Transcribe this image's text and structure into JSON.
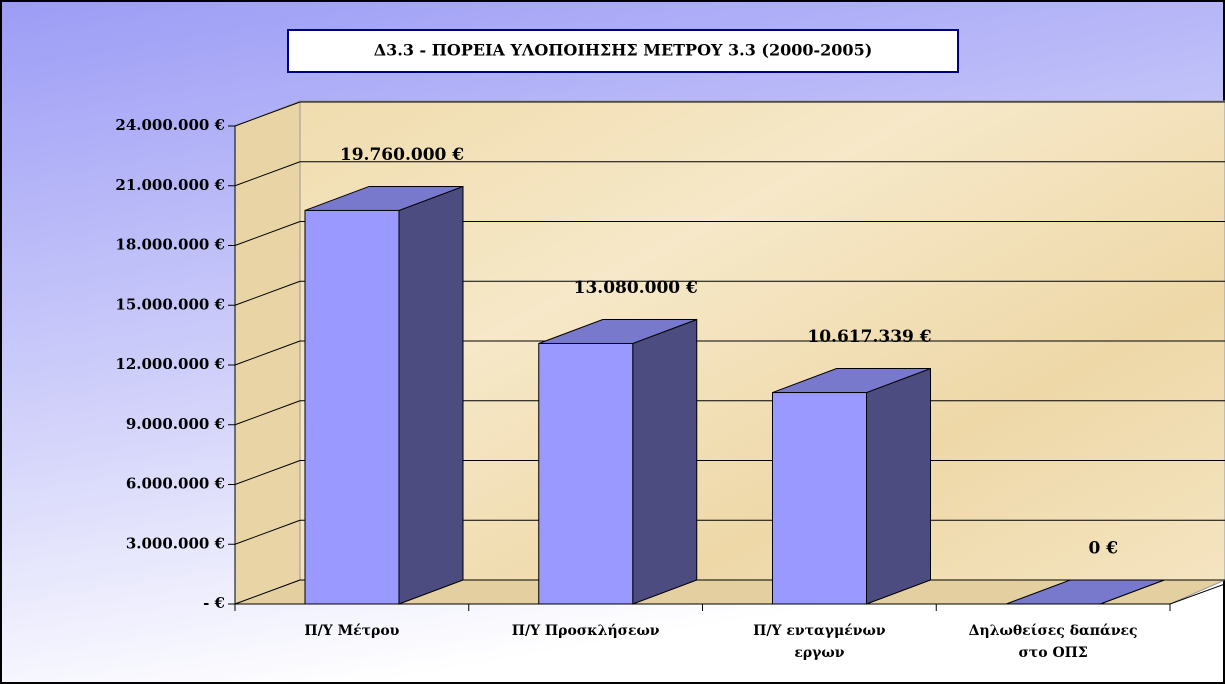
{
  "chart_data": {
    "type": "bar3d",
    "title": "Δ3.3 - ΠΟΡΕΙΑ ΥΛΟΠΟΙΗΣΗΣ ΜΕΤΡΟΥ 3.3  (2000-2005)",
    "categories": [
      "Π/Υ Μέτρου",
      "Π/Υ  Προσκλήσεων",
      "Π/Υ ενταγμένων εργων",
      "Δηλωθείσες δαπάνες στο ΟΠΣ"
    ],
    "values": [
      19760000,
      13080000,
      10617339,
      0
    ],
    "value_labels": [
      "19.760.000 €",
      "13.080.000 €",
      "10.617.339 €",
      "0 €"
    ],
    "color": "#9999ff",
    "ylim": [
      0,
      24000000
    ],
    "yticks": [
      {
        "value": 0,
        "label": "- €"
      },
      {
        "value": 3000000,
        "label": "3.000.000 €"
      },
      {
        "value": 6000000,
        "label": "6.000.000 €"
      },
      {
        "value": 9000000,
        "label": "9.000.000 €"
      },
      {
        "value": 12000000,
        "label": "12.000.000 €"
      },
      {
        "value": 15000000,
        "label": "15.000.000 €"
      },
      {
        "value": 18000000,
        "label": "18.000.000 €"
      },
      {
        "value": 21000000,
        "label": "21.000.000 €"
      },
      {
        "value": 24000000,
        "label": "24.000.000 €"
      }
    ],
    "grid": true
  }
}
